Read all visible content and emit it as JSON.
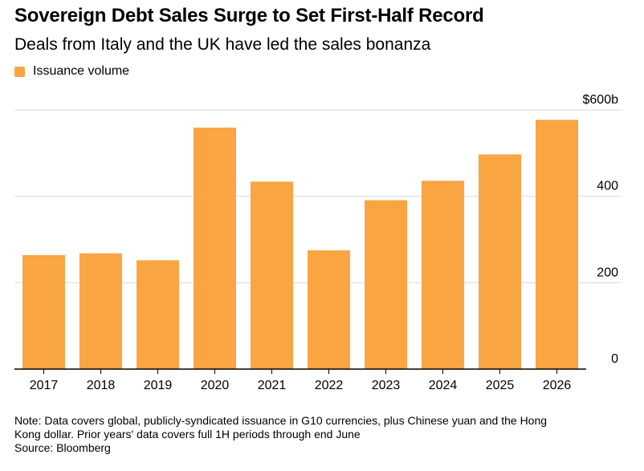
{
  "header": {
    "title": "Sovereign Debt Sales Surge to Set First-Half Record",
    "subtitle": "Deals from Italy and the UK have led the sales bonanza"
  },
  "legend": {
    "label": "Issuance volume"
  },
  "colors": {
    "bar": "#f9a542",
    "grid": "#d9d9d9",
    "axis": "#000000"
  },
  "chart_data": {
    "type": "bar",
    "title": "Sovereign Debt Sales Surge to Set First-Half Record",
    "subtitle": "Deals from Italy and the UK have led the sales bonanza",
    "categories": [
      "2017",
      "2018",
      "2019",
      "2020",
      "2021",
      "2022",
      "2023",
      "2024",
      "2025",
      "2026"
    ],
    "series": [
      {
        "name": "Issuance volume",
        "values": [
          264,
          268,
          252,
          559,
          434,
          275,
          391,
          436,
          497,
          577
        ]
      }
    ],
    "ylim": [
      0,
      600
    ],
    "yticks": [
      {
        "value": 0,
        "label": "0"
      },
      {
        "value": 200,
        "label": "200"
      },
      {
        "value": 400,
        "label": "400"
      },
      {
        "value": 600,
        "label": "$600b"
      }
    ],
    "grid": true,
    "legend_position": "top-left",
    "y_axis_side": "right"
  },
  "footnote": {
    "note_line1": "Note: Data covers global, publicly-syndicated issuance in G10 currencies, plus Chinese yuan and the Hong",
    "note_line2": "Kong dollar. Prior years' data covers full 1H periods through end June",
    "source": "Source: Bloomberg"
  }
}
